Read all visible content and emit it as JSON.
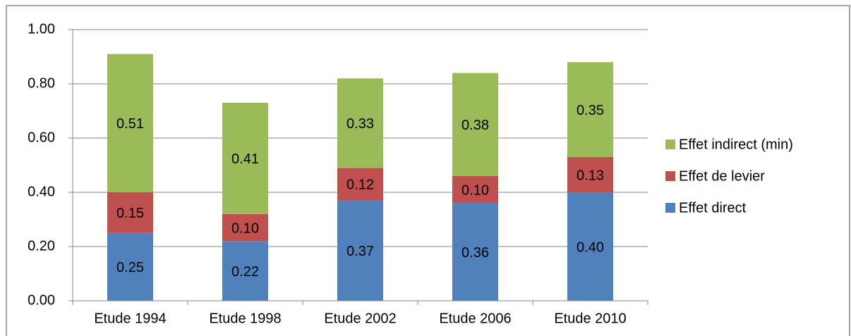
{
  "chart_data": {
    "type": "stacked_bar",
    "categories": [
      "Etude 1994",
      "Etude 1998",
      "Etude 2002",
      "Etude 2006",
      "Etude 2010"
    ],
    "series": [
      {
        "name": "Effet direct",
        "color": "#4f81bd",
        "values": [
          0.25,
          0.22,
          0.37,
          0.36,
          0.4
        ],
        "value_labels": [
          "0.25",
          "0.22",
          "0.37",
          "0.36",
          "0.40"
        ]
      },
      {
        "name": "Effet de levier",
        "color": "#c0504d",
        "values": [
          0.15,
          0.1,
          0.12,
          0.1,
          0.13
        ],
        "value_labels": [
          "0.15",
          "0.10",
          "0.12",
          "0.10",
          "0.13"
        ]
      },
      {
        "name": "Effet indirect (min)",
        "color": "#9bbb59",
        "values": [
          0.51,
          0.41,
          0.33,
          0.38,
          0.35
        ],
        "value_labels": [
          "0.51",
          "0.41",
          "0.33",
          "0.38",
          "0.35"
        ]
      }
    ],
    "ylim": [
      0,
      1
    ],
    "yticks": [
      {
        "value": 0,
        "label": "0.00"
      },
      {
        "value": 0.2,
        "label": "0.20"
      },
      {
        "value": 0.4,
        "label": "0.40"
      },
      {
        "value": 0.6,
        "label": "0.60"
      },
      {
        "value": 0.8,
        "label": "0.80"
      },
      {
        "value": 1,
        "label": "1.00"
      }
    ],
    "grid": true,
    "legend": "right"
  }
}
